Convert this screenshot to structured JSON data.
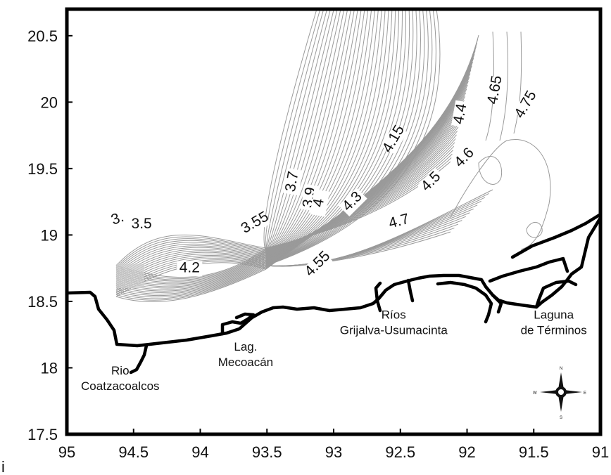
{
  "map": {
    "axes": {
      "x_ticks": [
        "95",
        "94.5",
        "94",
        "93.5",
        "93",
        "92.5",
        "92",
        "91.5",
        "91"
      ],
      "y_ticks": [
        "20.5",
        "20",
        "19.5",
        "19",
        "18.5",
        "18",
        "17.5"
      ],
      "x_range": [
        95,
        91
      ],
      "y_range": [
        17.5,
        20.7
      ]
    },
    "contour_labels": [
      {
        "text": "3.5",
        "lon": 94.44,
        "lat": 19.05,
        "rotate": 0
      },
      {
        "text": "3.55",
        "lon": 93.59,
        "lat": 19.06,
        "rotate": -30
      },
      {
        "text": "3.",
        "lon": 94.62,
        "lat": 19.09,
        "rotate": -20
      },
      {
        "text": "3.7",
        "lon": 93.31,
        "lat": 19.37,
        "rotate": -80
      },
      {
        "text": "3.9",
        "lon": 93.18,
        "lat": 19.25,
        "rotate": -80
      },
      {
        "text": "4",
        "lon": 93.11,
        "lat": 19.21,
        "rotate": -80
      },
      {
        "text": "4.2",
        "lon": 94.08,
        "lat": 18.72,
        "rotate": 0
      },
      {
        "text": "4.55",
        "lon": 93.12,
        "lat": 18.75,
        "rotate": -45
      },
      {
        "text": "4.3",
        "lon": 92.86,
        "lat": 19.22,
        "rotate": -45
      },
      {
        "text": "4.7",
        "lon": 92.51,
        "lat": 19.07,
        "rotate": -15
      },
      {
        "text": "4.5",
        "lon": 92.27,
        "lat": 19.37,
        "rotate": -45
      },
      {
        "text": "4.15",
        "lon": 92.55,
        "lat": 19.69,
        "rotate": -60
      },
      {
        "text": "4.6",
        "lon": 92.02,
        "lat": 19.55,
        "rotate": -45
      },
      {
        "text": "4.4",
        "lon": 92.05,
        "lat": 19.88,
        "rotate": -80
      },
      {
        "text": "4.65",
        "lon": 91.79,
        "lat": 20.06,
        "rotate": -80
      },
      {
        "text": "4.75",
        "lon": 91.56,
        "lat": 19.95,
        "rotate": -60
      }
    ],
    "places": [
      {
        "lines": [
          "Rio",
          "Coatzacoalcos"
        ],
        "lon": 94.6,
        "lat": 17.95
      },
      {
        "lines": [
          "Lag.",
          "Mecoacán"
        ],
        "lon": 93.66,
        "lat": 18.13
      },
      {
        "lines": [
          "Ríos",
          "Grijalva-Usumacinta"
        ],
        "lon": 92.55,
        "lat": 18.37
      },
      {
        "lines": [
          "Laguna",
          "de Términos"
        ],
        "lon": 91.35,
        "lat": 18.37
      }
    ],
    "compass": {
      "n": "N",
      "s": "S",
      "e": "E",
      "w": "W"
    },
    "corner_mark": "i",
    "colors": {
      "frame": "#000000",
      "contour": "#9a9a9a",
      "coast": "#000000"
    }
  }
}
